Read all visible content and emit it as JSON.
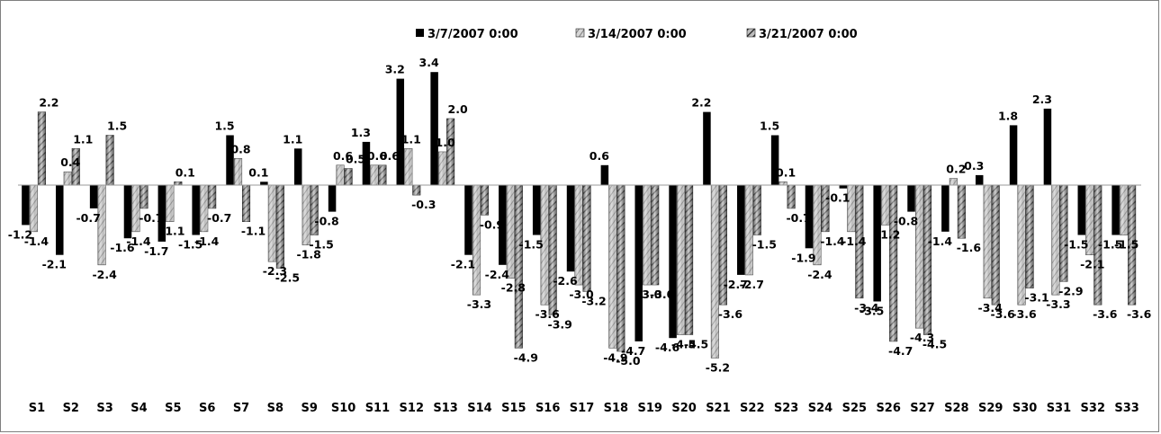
{
  "chart_data": {
    "type": "bar",
    "title": "",
    "xlabel": "",
    "ylabel": "",
    "ylim": [
      -5.5,
      3.8
    ],
    "grid": false,
    "legend_position": "top-center",
    "categories": [
      "S1",
      "S2",
      "S3",
      "S4",
      "S5",
      "S6",
      "S7",
      "S8",
      "S9",
      "S10",
      "S11",
      "S12",
      "S13",
      "S14",
      "S15",
      "S16",
      "S17",
      "S18",
      "S19",
      "S20",
      "S21",
      "S22",
      "S23",
      "S24",
      "S25",
      "S26",
      "S27",
      "S28",
      "S29",
      "S30",
      "S31",
      "S32",
      "S33"
    ],
    "series": [
      {
        "name": "3/7/2007 0:00",
        "fill": "solid-black",
        "color": "#000000",
        "values": [
          -1.2,
          -2.1,
          -0.7,
          -1.6,
          -1.7,
          -1.5,
          1.5,
          0.1,
          1.1,
          -0.8,
          1.3,
          3.2,
          3.4,
          -2.1,
          -2.4,
          -1.5,
          -2.6,
          0.6,
          -4.7,
          -4.6,
          2.2,
          -2.7,
          1.5,
          -1.9,
          -0.1,
          -3.5,
          -0.8,
          -1.4,
          0.3,
          1.8,
          2.3,
          -1.5,
          -1.5
        ]
      },
      {
        "name": "3/14/2007 0:00",
        "fill": "light-gray-stripes",
        "color": "#b0b0b0",
        "values": [
          -1.4,
          0.4,
          -2.4,
          -1.4,
          -1.1,
          -1.4,
          0.8,
          -2.3,
          -1.8,
          0.6,
          0.6,
          1.1,
          1.0,
          -3.3,
          -2.8,
          -3.6,
          -3.0,
          -4.9,
          -3.0,
          -4.5,
          -5.2,
          -2.7,
          0.1,
          -2.4,
          -1.4,
          -1.2,
          -4.3,
          0.2,
          -3.4,
          -3.6,
          -3.3,
          -2.1,
          -1.5
        ]
      },
      {
        "name": "3/21/2007 0:00",
        "fill": "dark-diagonal-hatch",
        "color": "#4a4a4a",
        "values": [
          2.2,
          1.1,
          1.5,
          -0.7,
          0.1,
          -0.7,
          -1.1,
          -2.5,
          -1.5,
          0.5,
          0.6,
          -0.3,
          2.0,
          -0.9,
          -4.9,
          -3.9,
          -3.2,
          -5.0,
          -3.0,
          -4.5,
          -3.6,
          -1.5,
          -0.7,
          -1.4,
          -3.4,
          -4.7,
          -4.5,
          -1.6,
          -3.6,
          -3.1,
          -2.9,
          -3.6,
          -3.6
        ]
      }
    ]
  }
}
